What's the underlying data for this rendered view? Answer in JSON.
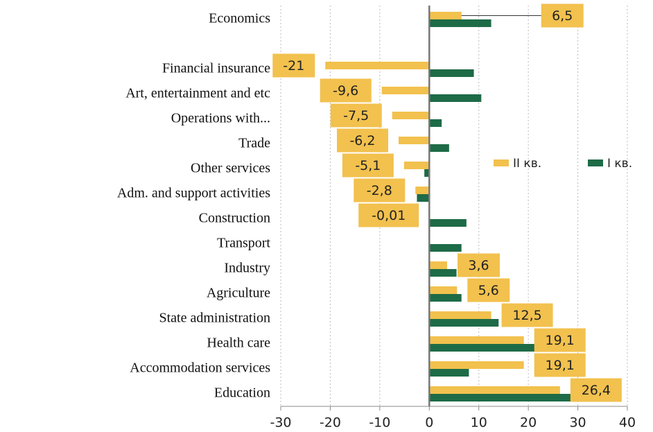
{
  "chart_data": {
    "type": "bar",
    "orientation": "horizontal",
    "categories": [
      "Economics",
      "Financial insurance",
      "Art, entertainment and etc",
      "Operations with...",
      "Trade",
      "Other services",
      "Adm. and support activities",
      "Construction",
      "Transport",
      "Industry",
      "Agriculture",
      "State administration",
      "Health care",
      "Accommodation services",
      "Education"
    ],
    "series": [
      {
        "name": "II кв.",
        "color": "#f2c14e",
        "values": [
          6.5,
          -21,
          -9.6,
          -7.5,
          -6.2,
          -5.1,
          -2.8,
          -0.01,
          null,
          3.6,
          5.6,
          12.5,
          19.1,
          19.1,
          26.4
        ],
        "value_labels": [
          "6,5",
          "-21",
          "-9,6",
          "-7,5",
          "-6,2",
          "-5,1",
          "-2,8",
          "-0,01",
          null,
          "3,6",
          "5,6",
          "12,5",
          "19,1",
          "19,1",
          "26,4"
        ]
      },
      {
        "name": "I кв.",
        "color": "#1e6b47",
        "values": [
          12.5,
          9,
          10.5,
          2.5,
          4,
          -1,
          -2.5,
          7.5,
          6.5,
          5.5,
          6.5,
          14,
          24,
          8,
          33
        ]
      }
    ],
    "xlim": [
      -30,
      40
    ],
    "xticks": [
      -30,
      -20,
      -10,
      0,
      10,
      20,
      30,
      40
    ],
    "grid": true,
    "legend": "right"
  }
}
